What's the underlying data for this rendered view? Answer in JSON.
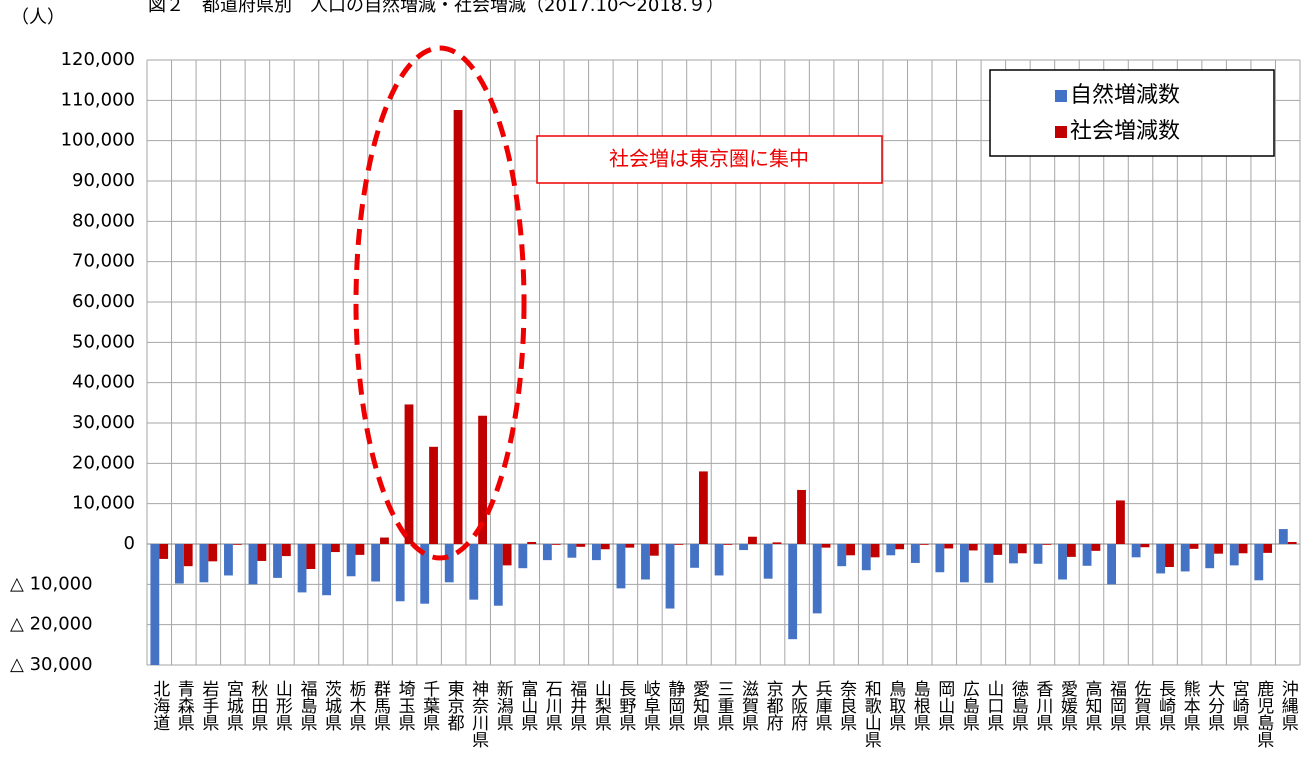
{
  "chart_data": {
    "type": "bar",
    "title": "図２　都道府県別　人口の自然増減・社会増減（2017.10〜2018.９）",
    "y_label": "（人）",
    "annotation": "社会増は東京圏に集中",
    "categories": [
      "北海道",
      "青森県",
      "岩手県",
      "宮城県",
      "秋田県",
      "山形県",
      "福島県",
      "茨城県",
      "栃木県",
      "群馬県",
      "埼玉県",
      "千葉県",
      "東京都",
      "神奈川県",
      "新潟県",
      "富山県",
      "石川県",
      "福井県",
      "山梨県",
      "長野県",
      "岐阜県",
      "静岡県",
      "愛知県",
      "三重県",
      "滋賀県",
      "京都府",
      "大阪府",
      "兵庫県",
      "奈良県",
      "和歌山県",
      "鳥取県",
      "島根県",
      "岡山県",
      "広島県",
      "山口県",
      "徳島県",
      "香川県",
      "愛媛県",
      "高知県",
      "福岡県",
      "佐賀県",
      "長崎県",
      "熊本県",
      "大分県",
      "宮崎県",
      "鹿児島県",
      "沖縄県"
    ],
    "series": [
      {
        "name": "自然増減数",
        "color": "#4472c4",
        "values": [
          -32000,
          -9800,
          -9500,
          -7800,
          -10000,
          -8400,
          -12000,
          -12700,
          -8000,
          -9300,
          -14200,
          -14800,
          -9500,
          -13800,
          -15300,
          -6000,
          -4000,
          -3400,
          -4000,
          -11000,
          -8800,
          -16000,
          -5900,
          -7800,
          -1500,
          -8600,
          -23600,
          -17200,
          -5500,
          -6500,
          -2800,
          -4700,
          -7000,
          -9500,
          -9600,
          -4800,
          -4900,
          -8800,
          -5400,
          -10000,
          -3300,
          -7300,
          -6800,
          -6000,
          -5300,
          -9000,
          3700
        ]
      },
      {
        "name": "社会増減数",
        "color": "#c00000",
        "values": [
          -3700,
          -5500,
          -4300,
          -200,
          -4200,
          -3000,
          -6200,
          -2000,
          -2700,
          1600,
          34600,
          24100,
          107600,
          31800,
          -5300,
          500,
          -200,
          -700,
          -1300,
          -900,
          -2900,
          -200,
          18000,
          -200,
          1800,
          400,
          13400,
          -900,
          -2800,
          -3300,
          -1300,
          -200,
          -1100,
          -1600,
          -2700,
          -2300,
          -200,
          -3200,
          -1700,
          10800,
          -800,
          -5700,
          -1200,
          -2400,
          -2300,
          -2200,
          500
        ]
      }
    ],
    "ylim": [
      -30000,
      120000
    ],
    "yticks": [
      {
        "value": -30000,
        "label": "△ 30,000"
      },
      {
        "value": -20000,
        "label": "△ 20,000"
      },
      {
        "value": -10000,
        "label": "△ 10,000"
      },
      0,
      {
        "value": 10000,
        "label": "10,000"
      },
      {
        "value": 20000,
        "label": "20,000"
      },
      {
        "value": 30000,
        "label": "30,000"
      },
      {
        "value": 40000,
        "label": "40,000"
      },
      {
        "value": 50000,
        "label": "50,000"
      },
      {
        "value": 60000,
        "label": "60,000"
      },
      {
        "value": 70000,
        "label": "70,000"
      },
      {
        "value": 80000,
        "label": "80,000"
      },
      {
        "value": 90000,
        "label": "90,000"
      },
      {
        "value": 100000,
        "label": "100,000"
      },
      {
        "value": 110000,
        "label": "110,000"
      },
      {
        "value": 120000,
        "label": "120,000"
      }
    ],
    "grid": true,
    "legend": "top-right"
  }
}
